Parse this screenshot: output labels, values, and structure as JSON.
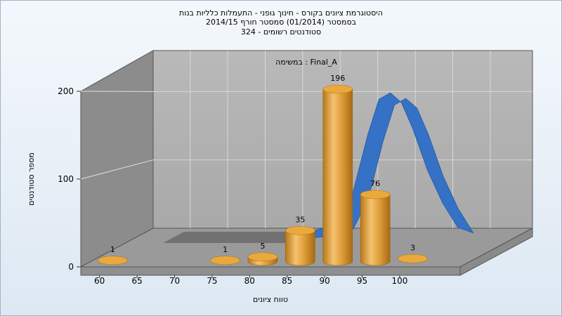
{
  "chart_data": {
    "type": "bar",
    "title": [
      "היסטוגרמת ציונים בקורס - חינוך גופני - התעמלות כלליות בנות",
      "בסמסטר  (01/2014)  סמסטר חורף 2014/15",
      "סטודנטים רשומים - 324"
    ],
    "annotation": "במשימה : Final_A",
    "xlabel": "טווח ציונים",
    "ylabel": "מספר סטודנטים",
    "x_ticks": [
      "60",
      "65",
      "70",
      "75",
      "80",
      "85",
      "90",
      "95",
      "100"
    ],
    "y_ticks": [
      "0",
      "100",
      "200"
    ],
    "ylim": [
      0,
      260
    ],
    "bars": [
      {
        "x": 61,
        "value": 1,
        "label": "1"
      },
      {
        "x": 76,
        "value": 1,
        "label": "1"
      },
      {
        "x": 81,
        "value": 5,
        "label": "5"
      },
      {
        "x": 86,
        "value": 35,
        "label": "35"
      },
      {
        "x": 91,
        "value": 196,
        "label": "196"
      },
      {
        "x": 96,
        "value": 76,
        "label": "76"
      },
      {
        "x": 101,
        "value": 3,
        "label": "3"
      }
    ],
    "curve": {
      "color": "#3572c6",
      "x": [
        82,
        85,
        88,
        90,
        92,
        93.5,
        95,
        96.5,
        98,
        100,
        102,
        104
      ],
      "y": [
        0,
        3,
        14,
        60,
        150,
        205,
        215,
        200,
        160,
        95,
        45,
        8
      ]
    },
    "bar_color": "#e3a33f",
    "grid": true
  }
}
